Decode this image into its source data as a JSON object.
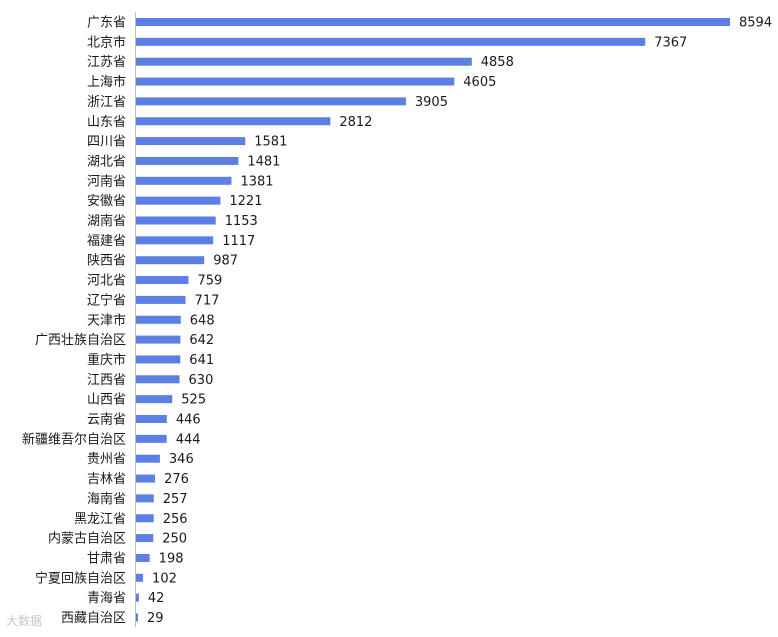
{
  "chart_data": {
    "type": "bar",
    "orientation": "horizontal",
    "categories": [
      "广东省",
      "北京市",
      "江苏省",
      "上海市",
      "浙江省",
      "山东省",
      "四川省",
      "湖北省",
      "河南省",
      "安徽省",
      "湖南省",
      "福建省",
      "陕西省",
      "河北省",
      "辽宁省",
      "天津市",
      "广西壮族自治区",
      "重庆市",
      "江西省",
      "山西省",
      "云南省",
      "新疆维吾尔自治区",
      "贵州省",
      "吉林省",
      "海南省",
      "黑龙江省",
      "内蒙古自治区",
      "甘肃省",
      "宁夏回族自治区",
      "青海省",
      "西藏自治区"
    ],
    "values": [
      8594,
      7367,
      4858,
      4605,
      3905,
      2812,
      1581,
      1481,
      1381,
      1221,
      1153,
      1117,
      987,
      759,
      717,
      648,
      642,
      641,
      630,
      525,
      446,
      444,
      346,
      276,
      257,
      256,
      250,
      198,
      102,
      42,
      29
    ],
    "bar_color": "#5b7fe3",
    "data_labels": true,
    "grid": false
  },
  "watermark": "大数据"
}
